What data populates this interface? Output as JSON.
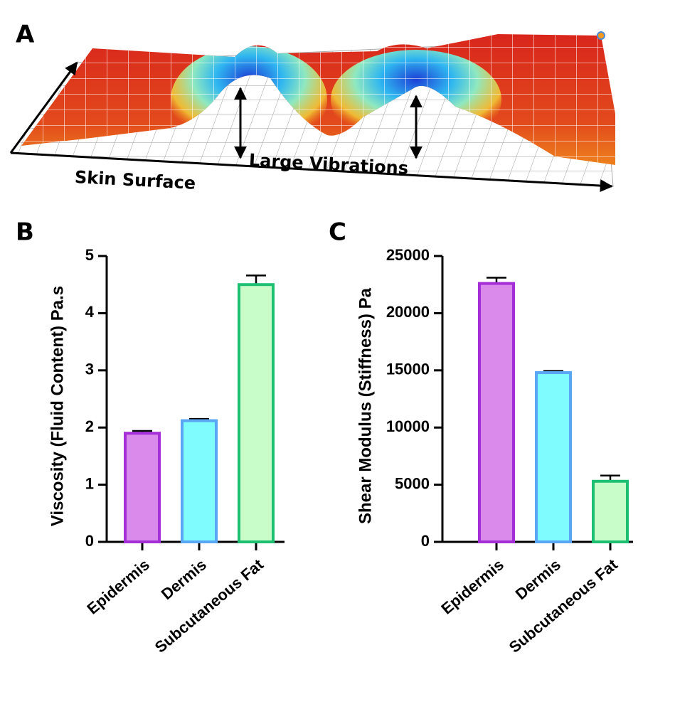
{
  "panel_a": {
    "label": "A",
    "annotations": [
      "Large Vibrations",
      "Skin Surface"
    ]
  },
  "chart_data": [
    {
      "type": "bar",
      "panel_label": "B",
      "y_label": "Viscosity (Fluid Content) Pa.s",
      "categories": [
        "Epidermis",
        "Dermis",
        "Subcutaneous Fat"
      ],
      "values": [
        1.9,
        2.12,
        4.5
      ],
      "errors": [
        0.04,
        0.03,
        0.16
      ],
      "colors": [
        "#d98aeb",
        "#7ffcfd",
        "#c8fcc8"
      ],
      "edge_colors": [
        "#a42fd6",
        "#5aa6f5",
        "#1dbf72"
      ],
      "ylim": [
        0,
        5
      ],
      "yticks": [
        0,
        1,
        2,
        3,
        4,
        5
      ]
    },
    {
      "type": "bar",
      "panel_label": "C",
      "y_label": "Shear Modulus (Stiffness) Pa",
      "categories": [
        "Epidermis",
        "Dermis",
        "Subcutaneous Fat"
      ],
      "values": [
        22600,
        14800,
        5300
      ],
      "errors": [
        500,
        150,
        500
      ],
      "colors": [
        "#d98aeb",
        "#7ffcfd",
        "#c8fcc8"
      ],
      "edge_colors": [
        "#a42fd6",
        "#5aa6f5",
        "#1dbf72"
      ],
      "ylim": [
        0,
        25000
      ],
      "yticks": [
        0,
        5000,
        10000,
        15000,
        20000,
        25000
      ]
    }
  ]
}
